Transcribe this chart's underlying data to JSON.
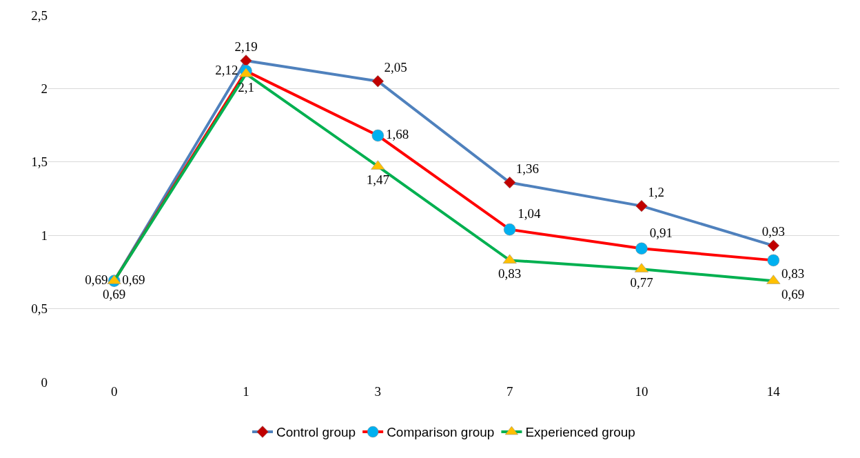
{
  "chart_data": {
    "type": "line",
    "categories": [
      "0",
      "1",
      "3",
      "7",
      "10",
      "14"
    ],
    "ylim": [
      0,
      2.5
    ],
    "yticks": [
      0,
      {
        "value": 0.5,
        "label": "0,5"
      },
      1,
      {
        "value": 1.5,
        "label": "1,5"
      },
      2,
      {
        "value": 2.5,
        "label": "2,5"
      }
    ],
    "grid": "y",
    "legend": "bottom",
    "line_style": "solid",
    "series": [
      {
        "name": "Control group",
        "color": "#4f81bd",
        "marker": "diamond",
        "colors": [
          "#c00000",
          "#c00000",
          "#c00000",
          "#c00000",
          "#c00000",
          "#c00000"
        ],
        "values": [
          0.69,
          2.19,
          2.05,
          1.36,
          1.2,
          0.93
        ],
        "value_labels": [
          "0,69",
          "2,19",
          "2,05",
          "1,36",
          "1,2",
          "0,93"
        ]
      },
      {
        "name": "Comparison group",
        "color": "#ff0000",
        "marker": "circle",
        "colors": [
          "#00b0f0",
          "#00b0f0",
          "#00b0f0",
          "#00b0f0",
          "#00b0f0",
          "#00b0f0"
        ],
        "values": [
          0.69,
          2.12,
          1.68,
          1.04,
          0.91,
          0.83
        ],
        "value_labels": [
          "0,69",
          "2,12",
          "1,68",
          "1,04",
          "0,91",
          "0,83"
        ]
      },
      {
        "name": "Experienced group",
        "color": "#00b050",
        "marker": "triangle",
        "colors": [
          "#ffc000",
          "#ffc000",
          "#ffc000",
          "#ffc000",
          "#ffc000",
          "#ffc000"
        ],
        "values": [
          0.69,
          2.1,
          1.47,
          0.83,
          0.77,
          0.69
        ],
        "value_labels": [
          "0,69",
          "2,1",
          "1,47",
          "0,83",
          "0,77",
          "0,69"
        ]
      }
    ]
  }
}
